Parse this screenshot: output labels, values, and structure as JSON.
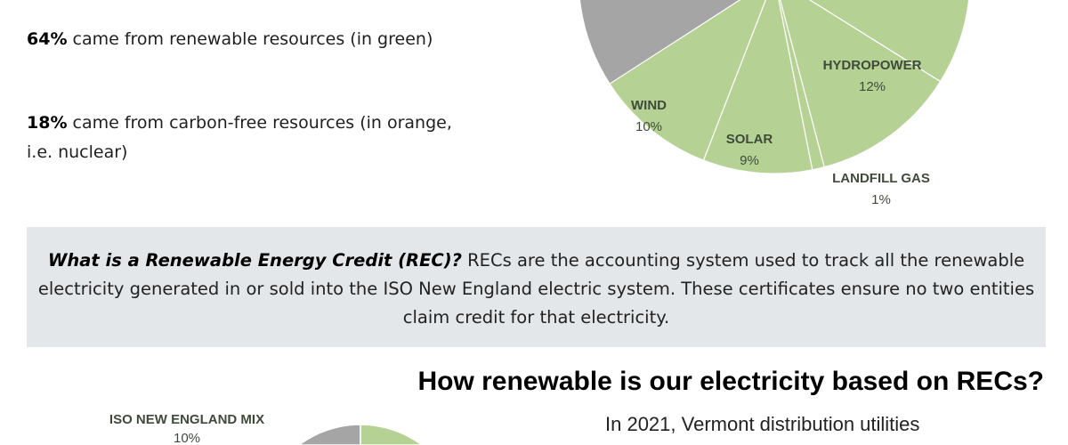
{
  "stats": [
    {
      "bold": "64%",
      "text": " came from renewable resources (in green)"
    },
    {
      "bold": "18%",
      "text": " came from carbon-free resources (in orange, i.e. nuclear)"
    }
  ],
  "rec_box": {
    "question": "What is a Renewable Energy Credit (REC)?",
    "text": "  RECs are the accounting system used to track all the renewable electricity generated in or sold into the ISO New England electric system. These certificates ensure no two entities claim credit for that electricity."
  },
  "section_heading": "How renewable is our electricity based on RECs?",
  "section_intro": "In 2021, Vermont distribution utilities",
  "colors": {
    "renewable": "#b5d294",
    "other": "#a5a5a5",
    "box": "#e3e7ea"
  },
  "chart_data": [
    {
      "type": "pie",
      "slices": [
        {
          "label": "HYDROPOWER",
          "value": 12,
          "display": "12%"
        },
        {
          "label": "LANDFILL GAS",
          "value": 1,
          "display": "1%"
        },
        {
          "label": "SOLAR",
          "value": 9,
          "display": "9%"
        },
        {
          "label": "WIND",
          "value": 10,
          "display": "10%"
        }
      ]
    },
    {
      "type": "pie",
      "slices": [
        {
          "label": "ISO NEW ENGLAND MIX",
          "value": 10,
          "display": "10%"
        }
      ]
    }
  ]
}
